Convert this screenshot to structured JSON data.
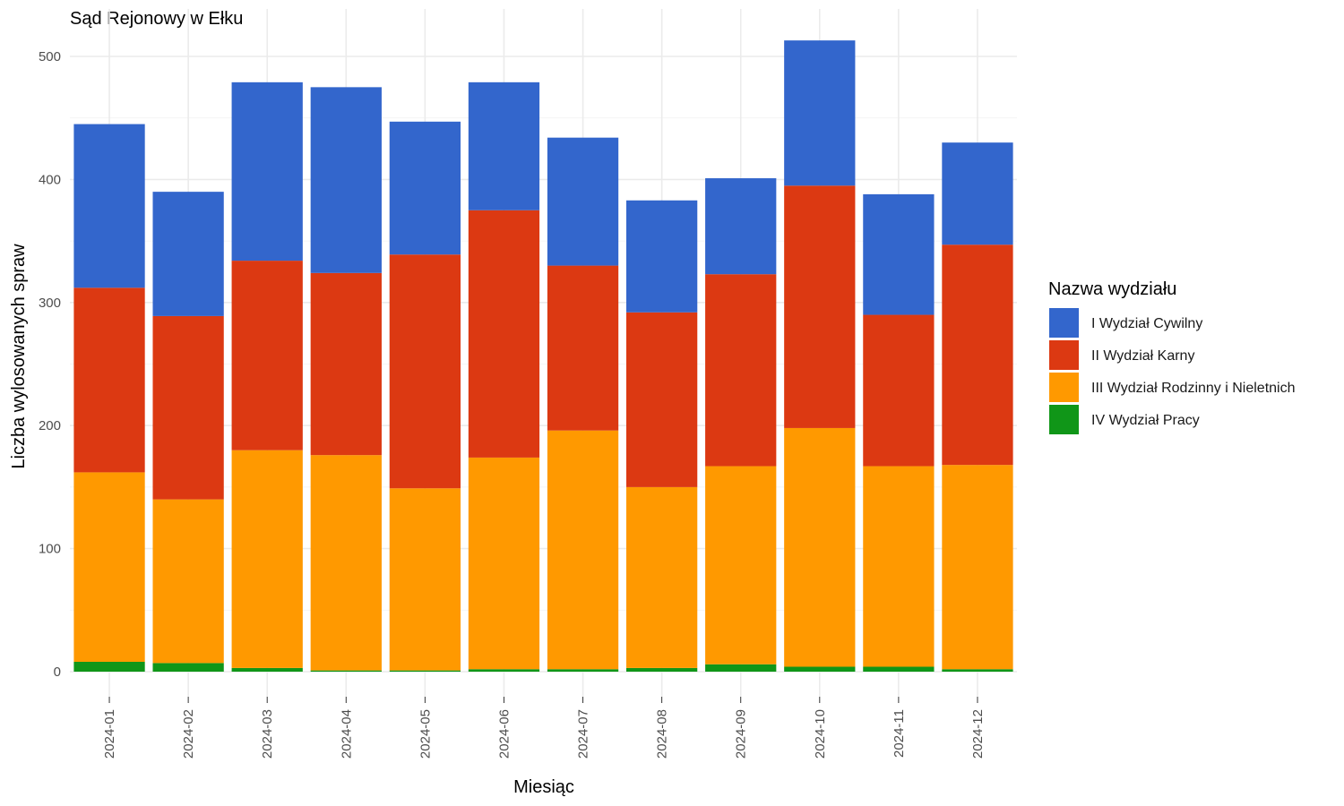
{
  "chart_data": {
    "type": "bar",
    "stacked": true,
    "title": "Sąd Rejonowy w Ełku",
    "xlabel": "Miesiąc",
    "ylabel": "Liczba wylosowanych spraw",
    "ylim": [
      0,
      520
    ],
    "yticks": [
      0,
      100,
      200,
      300,
      400,
      500
    ],
    "grid": true,
    "legend": {
      "title": "Nazwa wydziału",
      "position": "right"
    },
    "categories": [
      "2024-01",
      "2024-02",
      "2024-03",
      "2024-04",
      "2024-05",
      "2024-06",
      "2024-07",
      "2024-08",
      "2024-09",
      "2024-10",
      "2024-11",
      "2024-12"
    ],
    "series": [
      {
        "name": "IV Wydział Pracy",
        "color": "#109618",
        "values": [
          8,
          7,
          3,
          1,
          1,
          2,
          2,
          3,
          6,
          4,
          4,
          2
        ]
      },
      {
        "name": "III Wydział Rodzinny i Nieletnich",
        "color": "#FF9900",
        "values": [
          154,
          133,
          177,
          175,
          148,
          172,
          194,
          147,
          161,
          194,
          163,
          166
        ]
      },
      {
        "name": "II Wydział Karny",
        "color": "#DC3912",
        "values": [
          150,
          149,
          154,
          148,
          190,
          201,
          134,
          142,
          156,
          197,
          123,
          179
        ]
      },
      {
        "name": "I Wydział Cywilny",
        "color": "#3366CC",
        "values": [
          133,
          101,
          145,
          151,
          108,
          104,
          104,
          91,
          78,
          118,
          98,
          83
        ]
      }
    ],
    "legend_order": [
      "I Wydział Cywilny",
      "II Wydział Karny",
      "III Wydział Rodzinny i Nieletnich",
      "IV Wydział Pracy"
    ]
  }
}
